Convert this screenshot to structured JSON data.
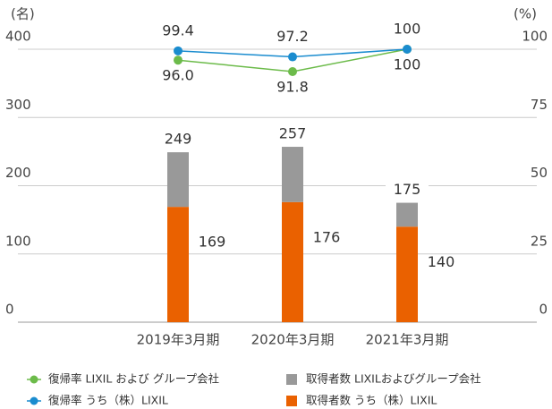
{
  "chart_data": {
    "type": "bar",
    "y_unit": "(名)",
    "y2_unit": "(%)",
    "categories": [
      "2019年3月期",
      "2020年3月期",
      "2021年3月期"
    ],
    "ylim": [
      0,
      400
    ],
    "yticks": [
      0,
      100,
      200,
      300,
      400
    ],
    "y2lim": [
      0,
      100
    ],
    "y2ticks": [
      0,
      25,
      50,
      75,
      100
    ],
    "grid": true,
    "series": [
      {
        "name": "取得者数 うち（株）LIXIL",
        "type": "bar",
        "color": "#ea6100",
        "values": [
          169,
          176,
          140
        ]
      },
      {
        "name": "取得者数 LIXILおよびグループ会社",
        "type": "bar",
        "color": "#999999",
        "values": [
          80,
          81,
          35
        ]
      },
      {
        "name": "復帰率 LIXIL および グループ会社",
        "type": "line",
        "axis": "y2",
        "color": "#6cbb4a",
        "values": [
          96.0,
          91.8,
          100
        ],
        "value_labels": [
          "96.0",
          "91.8",
          "100"
        ]
      },
      {
        "name": "復帰率 うち（株）LIXIL",
        "type": "line",
        "axis": "y2",
        "color": "#1a8ccf",
        "values": [
          99.4,
          97.2,
          100
        ]
      }
    ],
    "totals": [
      249,
      257,
      175
    ]
  }
}
